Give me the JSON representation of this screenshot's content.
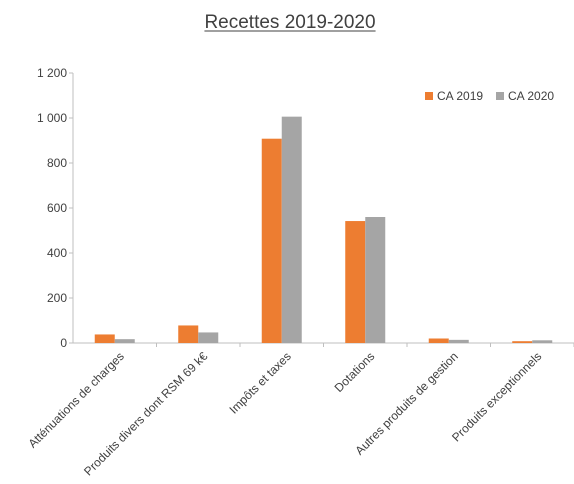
{
  "chart_data": {
    "type": "bar",
    "title": "Recettes  2019-2020",
    "xlabel": "",
    "ylabel": "",
    "ylim": [
      0,
      1200
    ],
    "yticks": [
      0,
      200,
      400,
      600,
      800,
      1000,
      1200
    ],
    "ytick_labels": [
      "0",
      "200",
      "400",
      "600",
      "800",
      "1 000",
      "1 200"
    ],
    "grid": false,
    "legend_position": "top-right",
    "categories": [
      "Atténuations de charges",
      "Produits divers dont RSM 69 k€",
      "Impôts et taxes",
      "Dotations",
      "Autres produits de gestion",
      "Produits exceptionnels"
    ],
    "series": [
      {
        "name": "CA 2019",
        "color": "#ed7d31",
        "values": [
          38,
          78,
          908,
          542,
          20,
          8
        ]
      },
      {
        "name": "CA 2020",
        "color": "#a5a5a5",
        "values": [
          17,
          47,
          1006,
          560,
          14,
          12
        ]
      }
    ]
  }
}
